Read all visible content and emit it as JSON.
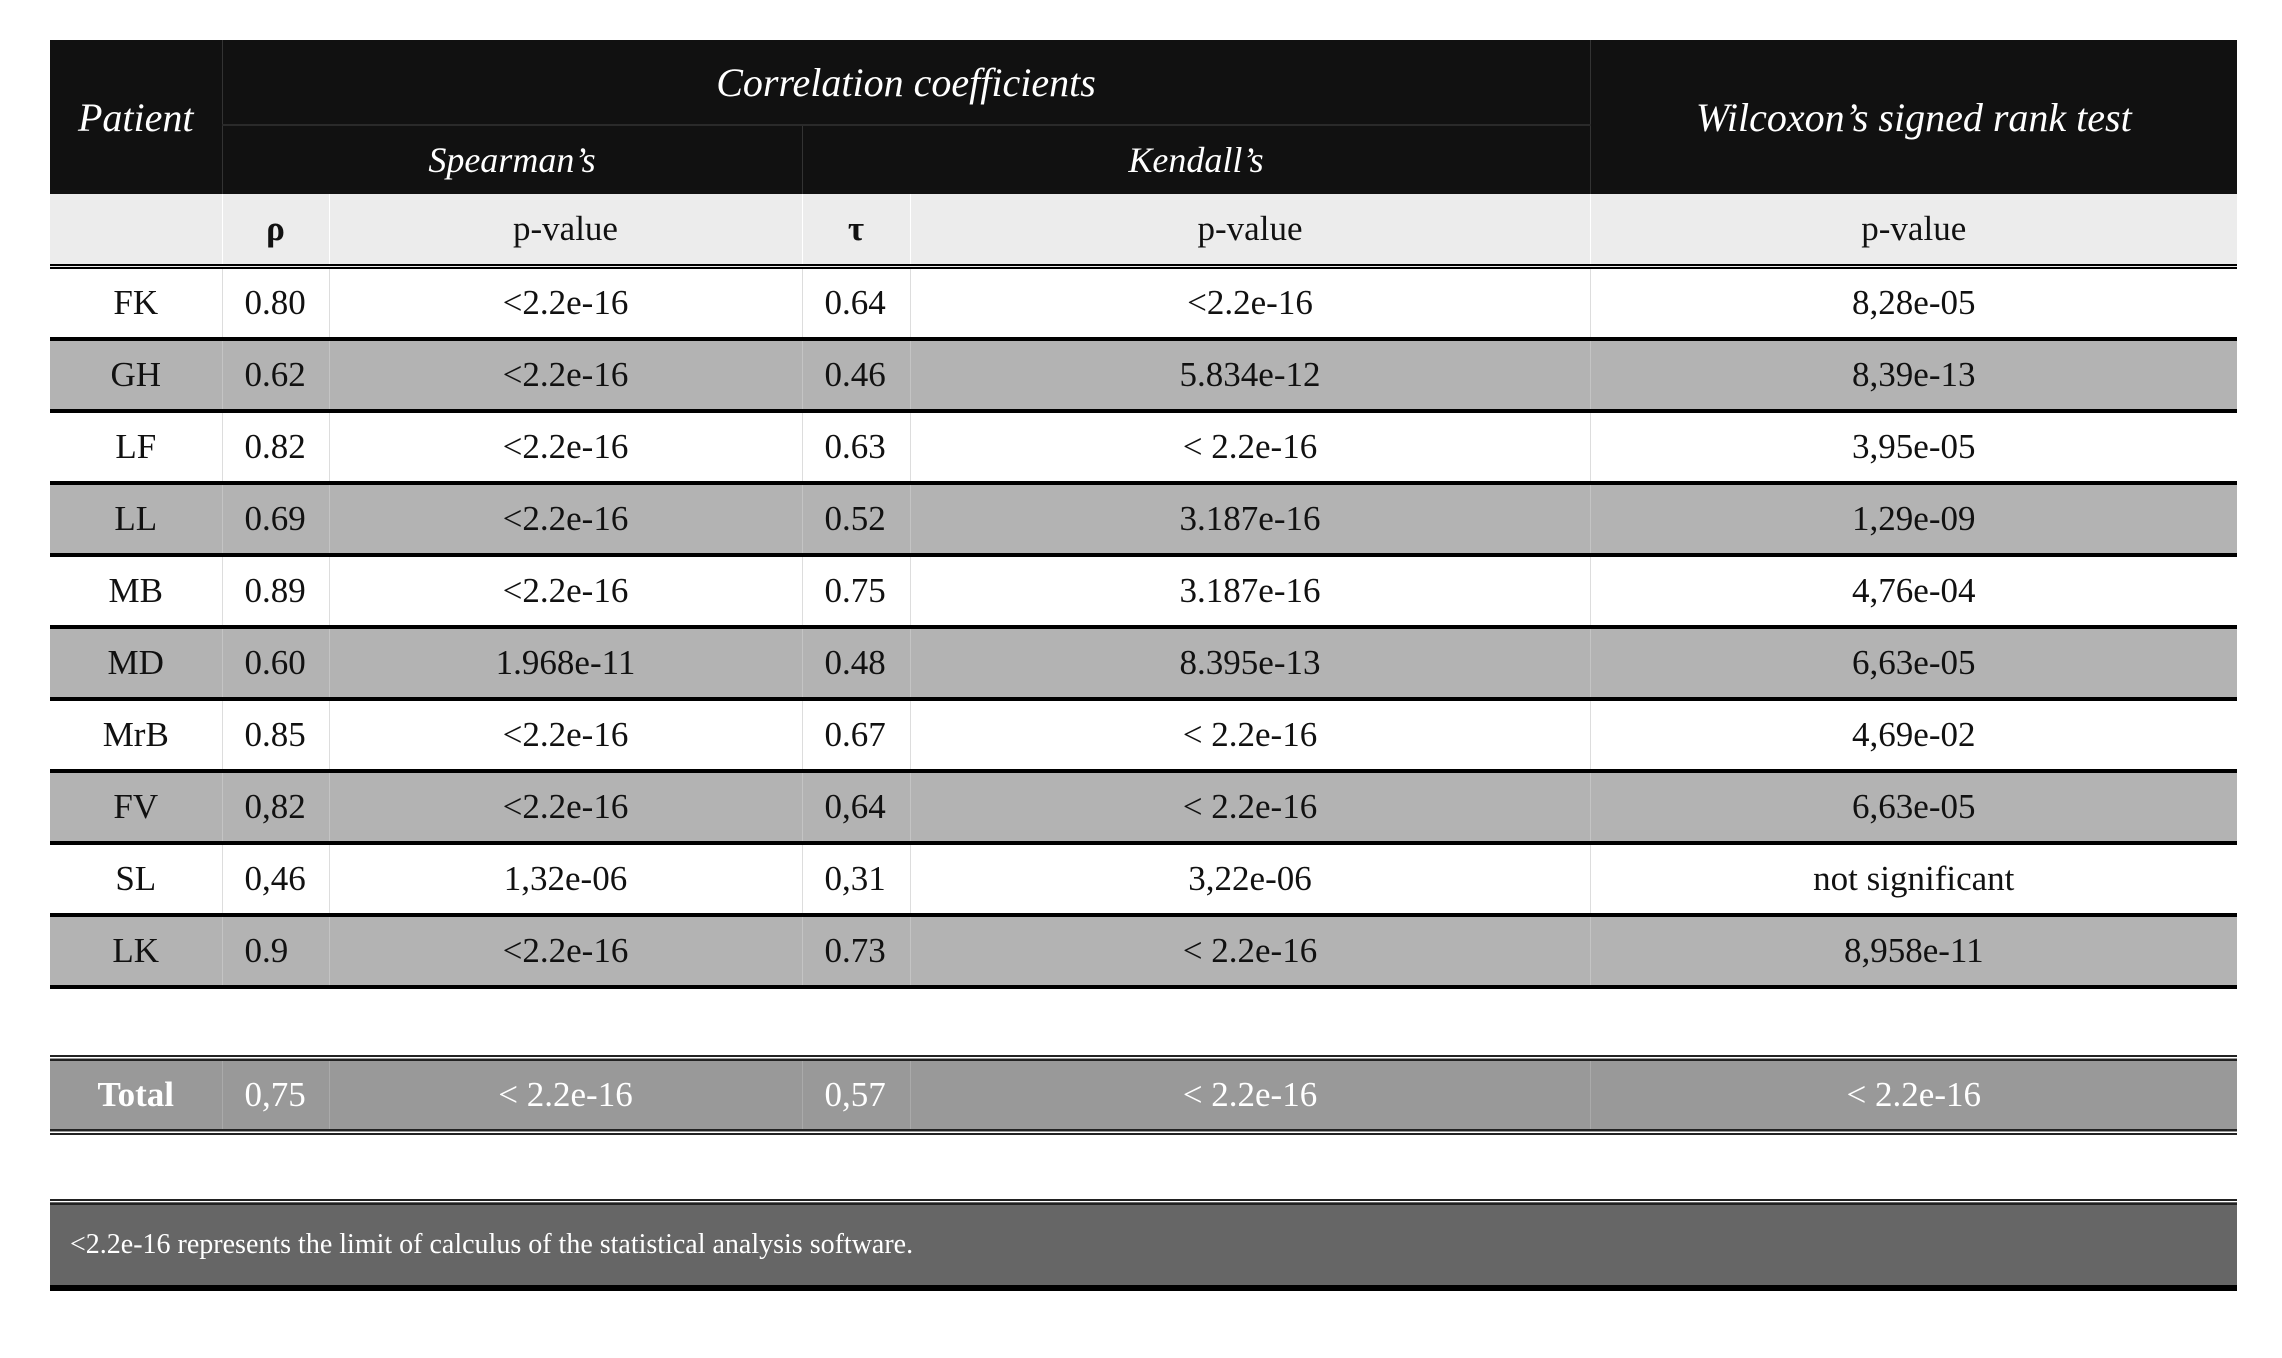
{
  "header": {
    "patient": "Patient",
    "correlation": "Correlation coefficients",
    "spearman": "Spearman’s",
    "kendall": "Kendall’s",
    "wilcoxon": "Wilcoxon’s signed rank test"
  },
  "subheader": {
    "rho": "ρ",
    "sp_p": "p-value",
    "tau": "τ",
    "k_p": "p-value",
    "w_p": "p-value"
  },
  "rows": [
    {
      "patient": "FK",
      "rho": "0.80",
      "sp_p": "<2.2e-16",
      "tau": "0.64",
      "k_p": "<2.2e-16",
      "w_p": "8,28e-05"
    },
    {
      "patient": "GH",
      "rho": "0.62",
      "sp_p": "<2.2e-16",
      "tau": "0.46",
      "k_p": "5.834e-12",
      "w_p": "8,39e-13"
    },
    {
      "patient": "LF",
      "rho": "0.82",
      "sp_p": "<2.2e-16",
      "tau": "0.63",
      "k_p": "< 2.2e-16",
      "w_p": "3,95e-05"
    },
    {
      "patient": "LL",
      "rho": "0.69",
      "sp_p": "<2.2e-16",
      "tau": "0.52",
      "k_p": "3.187e-16",
      "w_p": "1,29e-09"
    },
    {
      "patient": "MB",
      "rho": "0.89",
      "sp_p": "<2.2e-16",
      "tau": "0.75",
      "k_p": "3.187e-16",
      "w_p": "4,76e-04"
    },
    {
      "patient": "MD",
      "rho": "0.60",
      "sp_p": "1.968e-11",
      "tau": "0.48",
      "k_p": "8.395e-13",
      "w_p": "6,63e-05"
    },
    {
      "patient": "MrB",
      "rho": "0.85",
      "sp_p": "<2.2e-16",
      "tau": "0.67",
      "k_p": "< 2.2e-16",
      "w_p": "4,69e-02"
    },
    {
      "patient": "FV",
      "rho": "0,82",
      "sp_p": "<2.2e-16",
      "tau": "0,64",
      "k_p": "< 2.2e-16",
      "w_p": "6,63e-05"
    },
    {
      "patient": "SL",
      "rho": "0,46",
      "sp_p": "1,32e-06",
      "tau": "0,31",
      "k_p": "3,22e-06",
      "w_p": "not significant"
    },
    {
      "patient": "LK",
      "rho": "0.9",
      "sp_p": "<2.2e-16",
      "tau": "0.73",
      "k_p": "< 2.2e-16",
      "w_p": "8,958e-11"
    }
  ],
  "total": {
    "patient": "Total",
    "rho": "0,75",
    "sp_p": "< 2.2e-16",
    "tau": "0,57",
    "k_p": "< 2.2e-16",
    "w_p": "< 2.2e-16"
  },
  "footnote": "<2.2e-16 represents the limit of calculus of the statistical analysis software."
}
